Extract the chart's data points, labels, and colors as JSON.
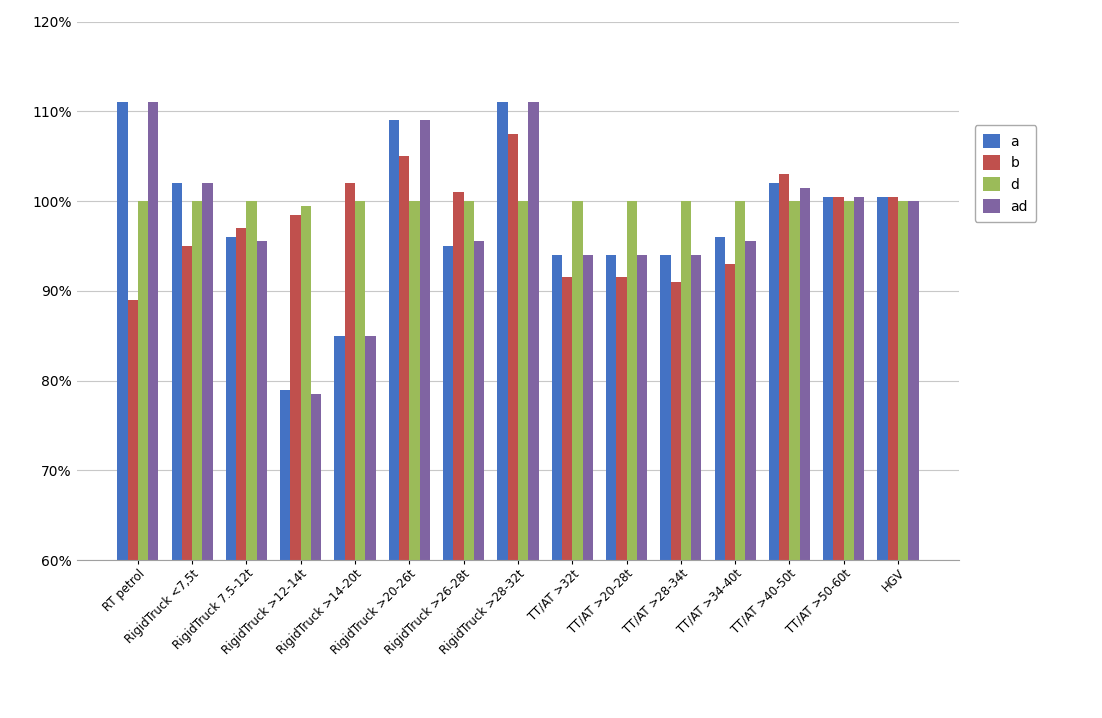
{
  "categories": [
    "RT petrol",
    "RigidTruck <7,5t",
    "RigidTruck 7.5-12t",
    "RigidTruck >12-14t",
    "RigidTruck >14-20t",
    "RigidTruck >20-26t",
    "RigidTruck >26-28t",
    "RigidTruck >28-32t",
    "TT/AT >32t",
    "TT/AT >20-28t",
    "TT/AT >28-34t",
    "TT/AT >34-40t",
    "TT/AT >40-50t",
    "TT/AT >50-60t",
    "HGV"
  ],
  "series": {
    "a": [
      111,
      102,
      96,
      79,
      85,
      109,
      95,
      111,
      94,
      94,
      94,
      96,
      102,
      100.5,
      100.5
    ],
    "b": [
      89,
      95,
      97,
      98.5,
      102,
      105,
      101,
      107.5,
      91.5,
      91.5,
      91,
      93,
      103,
      100.5,
      100.5
    ],
    "d": [
      100,
      100,
      100,
      99.5,
      100,
      100,
      100,
      100,
      100,
      100,
      100,
      100,
      100,
      100,
      100
    ],
    "ad": [
      111,
      102,
      95.5,
      78.5,
      85,
      109,
      95.5,
      111,
      94,
      94,
      94,
      95.5,
      101.5,
      100.5,
      100
    ]
  },
  "bar_colors": {
    "a": "#4472C4",
    "b": "#C0504D",
    "d": "#9BBB59",
    "ad": "#8064A2"
  },
  "legend_labels": [
    "a",
    "b",
    "d",
    "ad"
  ],
  "ylim": [
    60,
    120
  ],
  "ytick_labels_show": [
    60,
    70,
    80,
    90,
    100,
    110,
    120
  ],
  "background_color": "#FFFFFF",
  "grid_color": "#C8C8C8",
  "bar_width": 0.19,
  "figsize": [
    11.02,
    7.18
  ],
  "dpi": 100
}
